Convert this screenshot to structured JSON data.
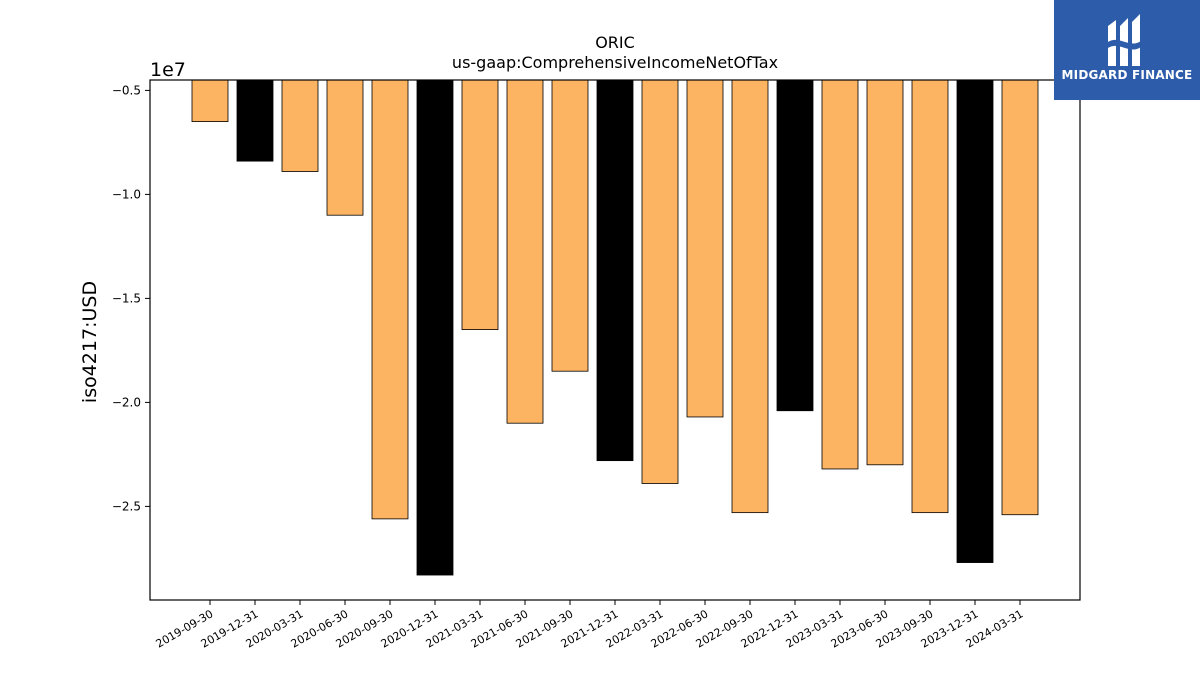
{
  "chart_data": {
    "type": "bar",
    "title": "ORIC",
    "subtitle": "us-gaap:ComprehensiveIncomeNetOfTax",
    "ylabel": "iso4217:USD",
    "xlabel": "",
    "offset_label": "1e7",
    "scale": 10000000,
    "ylim": [
      -2.95,
      -0.45
    ],
    "yticks": [
      -0.5,
      -1.0,
      -1.5,
      -2.0,
      -2.5
    ],
    "ytick_labels": [
      "−0.5",
      "−1.0",
      "−1.5",
      "−2.0",
      "−2.5"
    ],
    "categories": [
      "2019-09-30",
      "2019-12-31",
      "2020-03-31",
      "2020-06-30",
      "2020-09-30",
      "2020-12-31",
      "2021-03-31",
      "2021-06-30",
      "2021-09-30",
      "2021-12-31",
      "2022-03-31",
      "2022-06-30",
      "2022-09-30",
      "2022-12-31",
      "2023-03-31",
      "2023-06-30",
      "2023-09-30",
      "2023-12-31",
      "2024-03-31"
    ],
    "values": [
      -6500000,
      -8400000,
      -8900000,
      -11000000,
      -25600000,
      -28300000,
      -16500000,
      -21000000,
      -18500000,
      -22800000,
      -23900000,
      -20700000,
      -25300000,
      -20400000,
      -23200000,
      -23000000,
      -25300000,
      -27700000,
      -25400000
    ],
    "bar_colors": [
      "#fdb462",
      "#000000",
      "#fdb462",
      "#fdb462",
      "#fdb462",
      "#000000",
      "#fdb462",
      "#fdb462",
      "#fdb462",
      "#000000",
      "#fdb462",
      "#fdb462",
      "#fdb462",
      "#000000",
      "#fdb462",
      "#fdb462",
      "#fdb462",
      "#000000",
      "#fdb462"
    ],
    "grid": false,
    "legend": "none"
  },
  "logo": {
    "text": "MIDGARD FINANCE",
    "color": "#2d5cab"
  }
}
